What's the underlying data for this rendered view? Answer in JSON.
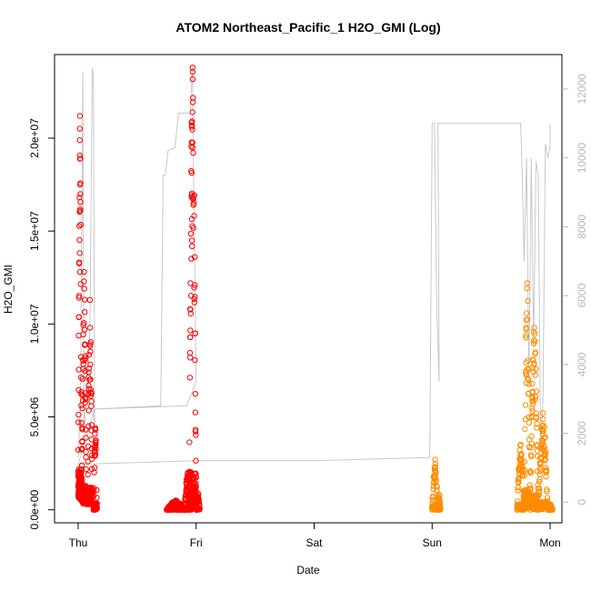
{
  "chart_data": {
    "type": "scatter",
    "title": "ATOM2 Northeast_Pacific_1 H2O_GMI (Log)",
    "xlabel": "Date",
    "ylabel": "H2O_GMI",
    "x_ticks": [
      "Thu",
      "Fri",
      "Sat",
      "Sun",
      "Mon"
    ],
    "xlim_days": [
      -0.2,
      4.1
    ],
    "y_left": {
      "lim": [
        -700000,
        24500000
      ],
      "ticks": [
        0,
        5000000,
        10000000,
        15000000,
        20000000
      ],
      "tick_labels": [
        "0.0e+00",
        "5.0e+06",
        "1.0e+07",
        "1.5e+07",
        "2.0e+07"
      ]
    },
    "y_right": {
      "lim": [
        -600,
        13000
      ],
      "ticks": [
        0,
        2000,
        4000,
        6000,
        8000,
        10000,
        12000
      ],
      "tick_labels": [
        "0",
        "2000",
        "4000",
        "6000",
        "8000",
        "10000",
        "12000"
      ]
    },
    "grid": false,
    "colors": {
      "series_red": "#ff0000",
      "series_orange": "#ff8c00",
      "altitude_line": "#c8c8c8"
    },
    "series": [
      {
        "marker": "circle-open",
        "color": "#ff0000",
        "bursts": [
          {
            "t0": 0.0,
            "t1": 0.03,
            "peak": 21200000,
            "low": 500000
          },
          {
            "t0": 0.03,
            "t1": 0.07,
            "peak": 12800000,
            "low": 300000
          },
          {
            "t0": 0.08,
            "t1": 0.12,
            "peak": 11300000,
            "low": 300000
          },
          {
            "t0": 0.13,
            "t1": 0.16,
            "peak": 4400000,
            "low": 0
          },
          {
            "t0": 0.75,
            "t1": 0.9,
            "peak": 500000,
            "low": 0
          },
          {
            "t0": 0.9,
            "t1": 0.96,
            "peak": 2000000,
            "low": 0
          },
          {
            "t0": 0.94,
            "t1": 1.0,
            "peak": 23800000,
            "low": 200000
          },
          {
            "t0": 1.0,
            "t1": 1.03,
            "peak": 900000,
            "low": 0
          }
        ]
      },
      {
        "marker": "circle-open",
        "color": "#ff8c00",
        "bursts": [
          {
            "t0": 3.0,
            "t1": 3.05,
            "peak": 2700000,
            "low": 0
          },
          {
            "t0": 3.05,
            "t1": 3.07,
            "peak": 800000,
            "low": 0
          },
          {
            "t0": 3.72,
            "t1": 3.78,
            "peak": 3500000,
            "low": 0
          },
          {
            "t0": 3.78,
            "t1": 3.83,
            "peak": 12200000,
            "low": 100000
          },
          {
            "t0": 3.83,
            "t1": 3.9,
            "peak": 9800000,
            "low": 0
          },
          {
            "t0": 3.9,
            "t1": 3.98,
            "peak": 5200000,
            "low": 0
          },
          {
            "t0": 3.98,
            "t1": 4.02,
            "peak": 300000,
            "low": 0
          }
        ]
      }
    ],
    "altitude_line": [
      [
        0.0,
        1300
      ],
      [
        0.02,
        2800
      ],
      [
        0.04,
        12500
      ],
      [
        0.05,
        2000
      ],
      [
        0.08,
        3500
      ],
      [
        0.1,
        5000
      ],
      [
        0.12,
        12600
      ],
      [
        0.13,
        12400
      ],
      [
        0.14,
        2000
      ],
      [
        0.13,
        2700
      ],
      [
        0.7,
        2800
      ],
      [
        0.72,
        9500
      ],
      [
        0.74,
        9500
      ],
      [
        0.76,
        10200
      ],
      [
        0.82,
        10300
      ],
      [
        0.85,
        11300
      ],
      [
        0.95,
        11300
      ],
      [
        0.97,
        12700
      ],
      [
        0.98,
        9000
      ],
      [
        1.0,
        3500
      ],
      [
        0.92,
        2800
      ],
      [
        0.14,
        2700
      ],
      [
        0.0,
        1100
      ],
      [
        1.0,
        1200
      ],
      [
        2.0,
        1200
      ],
      [
        2.98,
        1300
      ],
      [
        3.0,
        11000
      ],
      [
        3.02,
        11000
      ],
      [
        3.04,
        5500
      ],
      [
        3.06,
        3500
      ],
      [
        3.05,
        11000
      ],
      [
        3.7,
        11000
      ],
      [
        3.75,
        11000
      ],
      [
        3.76,
        10000
      ],
      [
        3.78,
        7000
      ],
      [
        3.8,
        10000
      ],
      [
        3.82,
        3500
      ],
      [
        3.84,
        10000
      ],
      [
        3.86,
        4500
      ],
      [
        3.88,
        9900
      ],
      [
        3.9,
        9500
      ],
      [
        3.92,
        1500
      ],
      [
        3.94,
        3000
      ],
      [
        3.96,
        10400
      ],
      [
        3.98,
        10000
      ],
      [
        4.0,
        10300
      ],
      [
        4.0,
        11000
      ]
    ]
  }
}
